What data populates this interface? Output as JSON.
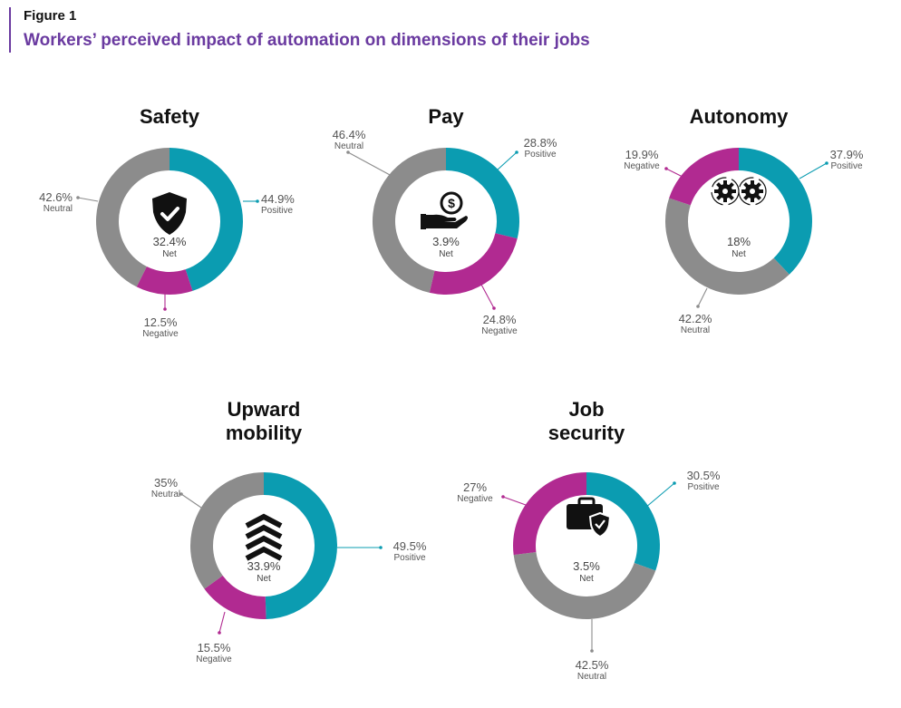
{
  "figure_label": "Figure 1",
  "figure_title": "Workers’ perceived impact of automation on dimensions of their jobs",
  "colors": {
    "positive": "#0b9cb1",
    "negative": "#b12a91",
    "neutral": "#8c8c8c"
  },
  "chart_data": [
    {
      "type": "pie",
      "variant": "donut",
      "title": [
        "Safety"
      ],
      "icon": "shield-check-icon",
      "slices": [
        {
          "category": "Positive",
          "value": 44.9,
          "label": "44.9%"
        },
        {
          "category": "Negative",
          "value": 12.5,
          "label": "12.5%"
        },
        {
          "category": "Neutral",
          "value": 42.6,
          "label": "42.6%"
        }
      ],
      "net": {
        "value": "32.4%",
        "label": "Net"
      }
    },
    {
      "type": "pie",
      "variant": "donut",
      "title": [
        "Pay"
      ],
      "icon": "hand-money-icon",
      "slices": [
        {
          "category": "Positive",
          "value": 28.8,
          "label": "28.8%"
        },
        {
          "category": "Negative",
          "value": 24.8,
          "label": "24.8%"
        },
        {
          "category": "Neutral",
          "value": 46.4,
          "label": "46.4%"
        }
      ],
      "net": {
        "value": "3.9%",
        "label": "Net"
      }
    },
    {
      "type": "pie",
      "variant": "donut",
      "title": [
        "Autonomy"
      ],
      "icon": "gears-icon",
      "slices": [
        {
          "category": "Positive",
          "value": 37.9,
          "label": "37.9%"
        },
        {
          "category": "Neutral",
          "value": 42.2,
          "label": "42.2%"
        },
        {
          "category": "Negative",
          "value": 19.9,
          "label": "19.9%"
        }
      ],
      "net": {
        "value": "18%",
        "label": "Net"
      }
    },
    {
      "type": "pie",
      "variant": "donut",
      "title": [
        "Upward",
        "mobility"
      ],
      "icon": "chevrons-up-icon",
      "slices": [
        {
          "category": "Positive",
          "value": 49.5,
          "label": "49.5%"
        },
        {
          "category": "Negative",
          "value": 15.5,
          "label": "15.5%"
        },
        {
          "category": "Neutral",
          "value": 35,
          "label": "35%"
        }
      ],
      "net": {
        "value": "33.9%",
        "label": "Net"
      }
    },
    {
      "type": "pie",
      "variant": "donut",
      "title": [
        "Job",
        "security"
      ],
      "icon": "briefcase-shield-icon",
      "slices": [
        {
          "category": "Positive",
          "value": 30.5,
          "label": "30.5%"
        },
        {
          "category": "Neutral",
          "value": 42.5,
          "label": "42.5%"
        },
        {
          "category": "Negative",
          "value": 27,
          "label": "27%"
        }
      ],
      "net": {
        "value": "3.5%",
        "label": "Net"
      }
    }
  ]
}
